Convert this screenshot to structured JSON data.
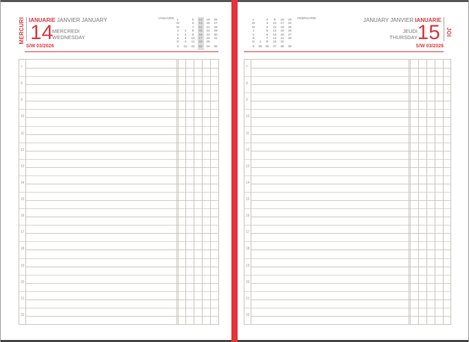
{
  "left_page": {
    "weekday_ro": "MERCURI",
    "month_ro": "IANUARIE",
    "month_other": "JANVIER JANUARY",
    "day_number": "14",
    "weekday_fr": "MERCREDI",
    "weekday_en": "WEDNESDAY",
    "week_label": "S/W 03/2026",
    "mini_calendar": {
      "month": "IANUARIE",
      "row_labels": [
        "L",
        "M",
        "M",
        "J",
        "V",
        "S",
        "D",
        "S"
      ],
      "highlight_week": "03",
      "columns": [
        [
          "",
          "",
          "",
          "1",
          "2",
          "3",
          "4",
          "01"
        ],
        [
          "5",
          "6",
          "7",
          "8",
          "9",
          "10",
          "11",
          "02"
        ],
        [
          "12",
          "13",
          "14",
          "15",
          "16",
          "17",
          "18",
          "03"
        ],
        [
          "19",
          "20",
          "21",
          "22",
          "23",
          "24",
          "25",
          "04"
        ],
        [
          "26",
          "27",
          "28",
          "29",
          "30",
          "31",
          "",
          "05"
        ]
      ]
    }
  },
  "right_page": {
    "weekday_ro": "JOI",
    "month_other": "JANUARY JANVIER",
    "month_ro": "IANUARIE",
    "day_number": "15",
    "weekday_fr": "JEUDI",
    "weekday_en": "THURSDAY",
    "week_label": "S/W 03/2026",
    "mini_calendar": {
      "month": "FEBRUARIE",
      "row_labels": [
        "L",
        "M",
        "M",
        "J",
        "V",
        "S",
        "D",
        "S"
      ],
      "columns": [
        [
          "",
          "",
          "",
          "",
          "",
          "",
          "1",
          "05"
        ],
        [
          "2",
          "3",
          "4",
          "5",
          "6",
          "7",
          "8",
          "06"
        ],
        [
          "9",
          "10",
          "11",
          "12",
          "13",
          "14",
          "15",
          "07"
        ],
        [
          "16",
          "17",
          "18",
          "19",
          "20",
          "21",
          "22",
          "08"
        ],
        [
          "23",
          "24",
          "25",
          "26",
          "27",
          "28",
          "",
          "09"
        ]
      ]
    }
  },
  "hours": [
    "7",
    "8",
    "9",
    "10",
    "11",
    "12",
    "13",
    "14",
    "15",
    "16",
    "17",
    "18",
    "19",
    "20",
    "21",
    "22"
  ],
  "colors": {
    "accent": "#d9393e",
    "spine": "#e2343a",
    "grid": "#c9c5bd"
  }
}
